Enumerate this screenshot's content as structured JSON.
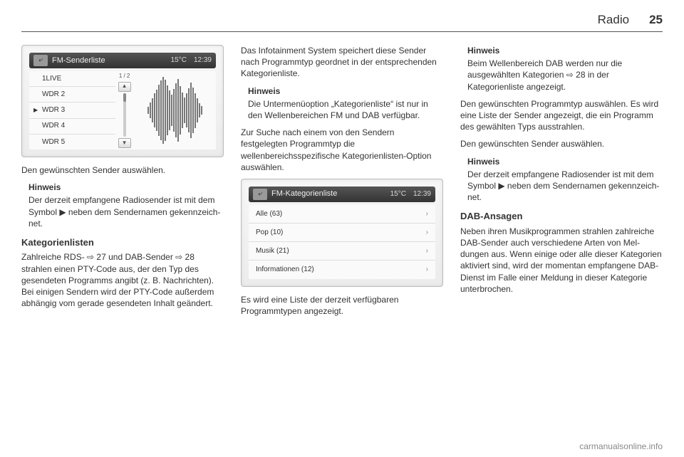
{
  "header": {
    "section": "Radio",
    "page": "25"
  },
  "col1": {
    "screenshot1": {
      "back_glyph": "⤶",
      "title": "FM-Senderliste",
      "temp": "15°C",
      "time": "12:39",
      "stations": [
        "1LIVE",
        "WDR 2",
        "WDR 3",
        "WDR 4",
        "WDR 5"
      ],
      "current_index": 2,
      "scroll_counter": "1 / 2",
      "up": "▲",
      "down": "▼",
      "wave_heights_pct": [
        10,
        22,
        34,
        48,
        60,
        74,
        86,
        96,
        88,
        72,
        58,
        44,
        62,
        78,
        90,
        70,
        52,
        36,
        48,
        64,
        80,
        66,
        50,
        34,
        20,
        12
      ]
    },
    "p1": "Den gewünschten Sender auswäh­len.",
    "hinweis1_label": "Hinweis",
    "hinweis1_body": "Der derzeit empfangene Radiosen­der ist mit dem Symbol ▶ neben dem Sendernamen gekennzeich­net.",
    "h_kat": "Kategorienlisten",
    "p_kat": "Zahlreiche RDS- ⇨ 27 und DAB-Sender ⇨ 28 strahlen einen PTY-Code aus, der den Typ des gesende­ten Programms angibt (z. B. Nach­richten). Bei einigen Sendern wird der PTY-Code außerdem abhängig vom gerade gesendeten Inhalt geändert."
  },
  "col2": {
    "p1": "Das Infotainment System speichert diese Sender nach Programmtyp ge­ordnet in der entsprechenden Kate­gorienliste.",
    "hinweis1_label": "Hinweis",
    "hinweis1_body": "Die Untermenüoption „Kategorien­liste“ ist nur in den Wellenbereichen FM und DAB verfügbar.",
    "p2": "Zur Suche nach einem von den Sen­dern festgelegten Programmtyp die wellenbereichsspezifische Kategori­enlisten-Option auswählen.",
    "screenshot2": {
      "back_glyph": "⤶",
      "title": "FM-Kategorienliste",
      "temp": "15°C",
      "time": "12:39",
      "rows": [
        {
          "label": "Alle (63)"
        },
        {
          "label": "Pop (10)"
        },
        {
          "label": "Musik (21)"
        },
        {
          "label": "Informationen (12)"
        }
      ],
      "chev": "›"
    },
    "p3": "Es wird eine Liste der derzeit verfüg­baren Programmtypen angezeigt."
  },
  "col3": {
    "hinweis1_label": "Hinweis",
    "hinweis1_body": "Beim Wellenbereich DAB werden nur die ausgewählten Kategorien ⇨ 28 in der Kategorienliste ange­zeigt.",
    "p1": "Den gewünschten Programmtyp aus­wählen. Es wird eine Liste der Sender angezeigt, die ein Programm des ge­wählten Typs ausstrahlen.",
    "p2": "Den gewünschten Sender auswäh­len.",
    "hinweis2_label": "Hinweis",
    "hinweis2_body": "Der derzeit empfangene Radiosen­der ist mit dem Symbol ▶ neben dem Sendernamen gekennzeich­net.",
    "h_dab": "DAB-Ansagen",
    "p_dab": "Neben ihren Musikprogrammen strahlen zahlreiche DAB-Sender auch verschiedene Arten von Mel­dungen aus. Wenn einige oder alle dieser Kategorien aktiviert sind, wird der momentan empfangene DAB-Dienst im Falle einer Meldung in die­ser Kategorie unterbrochen."
  },
  "watermark": "carmanualsonline.info"
}
